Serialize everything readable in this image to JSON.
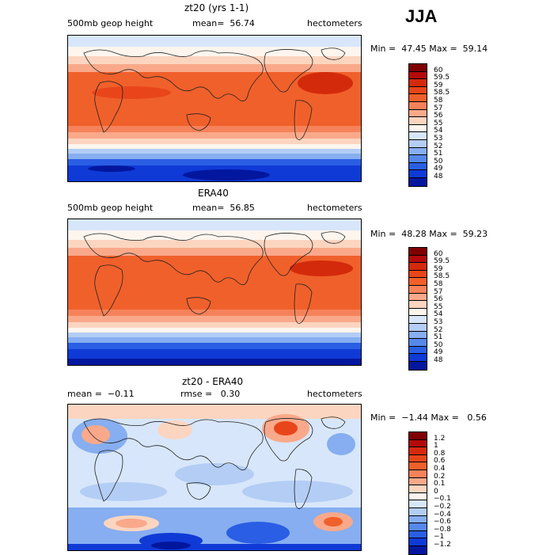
{
  "season": "JJA",
  "panels": [
    {
      "title": "zt20 (yrs 1-1)",
      "field": "500mb geop height",
      "stat": "mean=  56.74",
      "units": "hectometers",
      "minmax": "Min =  47.45 Max =  59.14",
      "colorbar_labels": [
        "60",
        "59.5",
        "59",
        "58.5",
        "58",
        "57",
        "56",
        "55",
        "54",
        "53",
        "52",
        "51",
        "50",
        "49",
        "48"
      ]
    },
    {
      "title": "ERA40",
      "field": "500mb geop height",
      "stat": "mean=  56.85",
      "units": "hectometers",
      "minmax": "Min =  48.28 Max =  59.23",
      "colorbar_labels": [
        "60",
        "59.5",
        "59",
        "58.5",
        "58",
        "57",
        "56",
        "55",
        "54",
        "53",
        "52",
        "51",
        "50",
        "49",
        "48"
      ]
    },
    {
      "title": "zt20 - ERA40",
      "field": "mean =  −0.11",
      "stat": "rmse =   0.30",
      "units": "hectometers",
      "minmax": "Min =  −1.44 Max =   0.56",
      "colorbar_labels": [
        "1.2",
        "1",
        "0.8",
        "0.6",
        "0.4",
        "0.2",
        "0.1",
        "0",
        "−0.1",
        "−0.2",
        "−0.4",
        "−0.6",
        "−0.8",
        "−1",
        "−1.2"
      ]
    }
  ],
  "colors": {
    "scale": [
      "#7f0000",
      "#b30a0a",
      "#d42a0c",
      "#e8461a",
      "#f0602b",
      "#f5825a",
      "#f9a98a",
      "#fcd5c0",
      "#fdf5ee",
      "#d7e6fa",
      "#b3cdf5",
      "#86aef0",
      "#5588ea",
      "#2a5ee4",
      "#0f3ad6",
      "#02179e"
    ]
  }
}
